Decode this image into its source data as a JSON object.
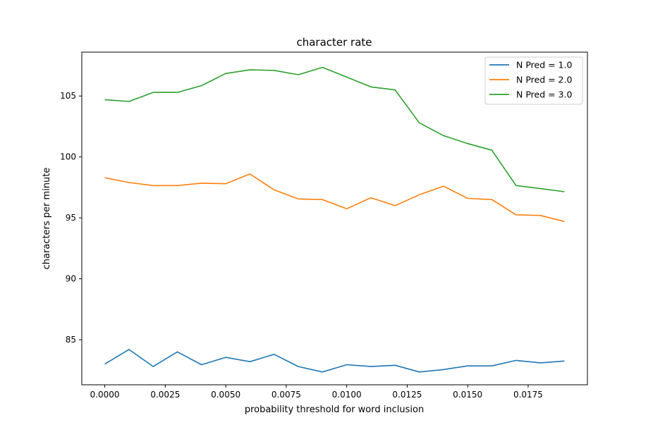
{
  "chart_data": {
    "type": "line",
    "title": "character rate",
    "xlabel": "probability threshold for word inclusion",
    "ylabel": "characters per minute",
    "xlim": [
      -0.00095,
      0.01995
    ],
    "ylim": [
      81.3,
      108.6
    ],
    "x_ticks": [
      0.0,
      0.0025,
      0.005,
      0.0075,
      0.01,
      0.0125,
      0.015,
      0.0175
    ],
    "x_tick_labels": [
      "0.0000",
      "0.0025",
      "0.0050",
      "0.0075",
      "0.0100",
      "0.0125",
      "0.0150",
      "0.0175"
    ],
    "y_ticks": [
      85,
      90,
      95,
      100,
      105
    ],
    "y_tick_labels": [
      "85",
      "90",
      "95",
      "100",
      "105"
    ],
    "grid": false,
    "legend_position": "top-right",
    "x": [
      0.0,
      0.001,
      0.002,
      0.003,
      0.004,
      0.005,
      0.006,
      0.007,
      0.008,
      0.009,
      0.01,
      0.011,
      0.012,
      0.013,
      0.014,
      0.015,
      0.016,
      0.017,
      0.018,
      0.019
    ],
    "series": [
      {
        "name": "N Pred = 1.0",
        "color": "#1f77b4",
        "values": [
          83.0,
          84.2,
          82.8,
          84.0,
          82.95,
          83.55,
          83.2,
          83.8,
          82.8,
          82.35,
          82.95,
          82.8,
          82.9,
          82.35,
          82.55,
          82.85,
          82.85,
          83.3,
          83.1,
          83.25
        ]
      },
      {
        "name": "N Pred = 2.0",
        "color": "#ff7f0e",
        "values": [
          98.3,
          97.9,
          97.65,
          97.65,
          97.85,
          97.8,
          98.6,
          97.3,
          96.55,
          96.5,
          95.75,
          96.65,
          96.0,
          96.9,
          97.6,
          96.6,
          96.5,
          95.25,
          95.2,
          94.7
        ]
      },
      {
        "name": "N Pred = 3.0",
        "color": "#2ca02c",
        "values": [
          104.7,
          104.55,
          105.3,
          105.3,
          105.85,
          106.85,
          107.15,
          107.1,
          106.75,
          107.35,
          106.55,
          105.75,
          105.5,
          102.8,
          101.75,
          101.1,
          100.55,
          97.65,
          97.4,
          97.15
        ]
      }
    ]
  }
}
